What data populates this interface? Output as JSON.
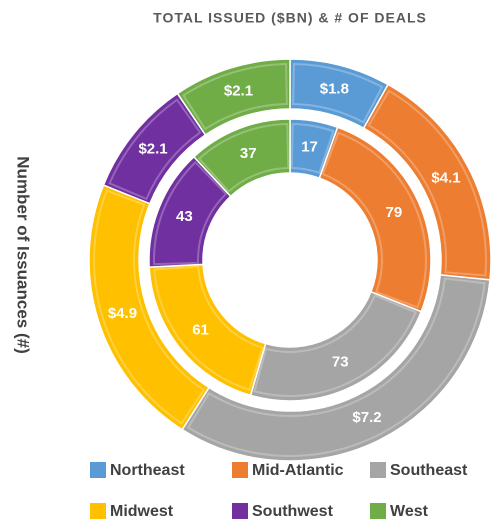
{
  "chart_data": {
    "type": "donut",
    "title": "TOTAL ISSUED ($BN) & # OF DEALS",
    "y_label": "Number of Issuances (#)",
    "categories": [
      "Northeast",
      "Mid-Atlantic",
      "Southeast",
      "Midwest",
      "Southwest",
      "West"
    ],
    "colors": [
      "#5b9bd5",
      "#ed7d31",
      "#a5a5a5",
      "#ffc000",
      "#7030a0",
      "#70ad47"
    ],
    "series": [
      {
        "values": [
          1.8,
          4.1,
          7.2,
          4.9,
          2.1,
          2.1
        ],
        "value_labels": [
          "$1.8",
          "$4.1",
          "$7.2",
          "$4.9",
          "$2.1",
          "$2.1"
        ]
      },
      {
        "values": [
          17,
          79,
          73,
          61,
          43,
          37
        ]
      }
    ]
  }
}
